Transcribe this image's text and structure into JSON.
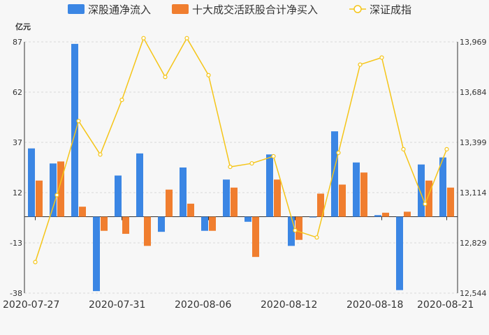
{
  "chart_data": {
    "type": "bar",
    "unit_label": "亿元",
    "legend": [
      {
        "name": "深股通净流入",
        "color": "#3b86e4",
        "kind": "bar"
      },
      {
        "name": "十大成交活跃股合计净买入",
        "color": "#f07e2f",
        "kind": "bar"
      },
      {
        "name": "深证成指",
        "color": "#f5c518",
        "kind": "line"
      }
    ],
    "x_tick_labels": [
      {
        "label": "2020-07-27",
        "index": 0
      },
      {
        "label": "2020-07-31",
        "index": 4
      },
      {
        "label": "2020-08-06",
        "index": 8
      },
      {
        "label": "2020-08-12",
        "index": 12
      },
      {
        "label": "2020-08-18",
        "index": 16
      },
      {
        "label": "2020-08-21",
        "index": 19
      }
    ],
    "y_left": {
      "min": -38,
      "max": 87,
      "ticks": [
        87,
        62,
        37,
        12,
        -13,
        -38
      ]
    },
    "y_right": {
      "min": 12544,
      "max": 13969,
      "ticks": [
        "13,969",
        "13,684",
        "13,399",
        "13,114",
        "12,829",
        "12,544"
      ]
    },
    "series": [
      {
        "name": "深股通净流入",
        "color": "#3b86e4",
        "values": [
          34,
          26.5,
          86,
          -37,
          20.5,
          31.5,
          -7.5,
          24.5,
          -7,
          18.5,
          -2.5,
          31,
          -14.5,
          0,
          42.5,
          27,
          0.8,
          -36.5,
          26,
          29.5
        ]
      },
      {
        "name": "十大成交活跃股合计净买入",
        "color": "#f07e2f",
        "values": [
          18,
          27.5,
          5,
          -7,
          -8.5,
          -14.5,
          13.5,
          6.5,
          -7,
          14.5,
          -20,
          18.5,
          -11.5,
          11.5,
          16,
          22,
          2,
          2.5,
          18,
          14.5
        ]
      },
      {
        "name": "深证成指",
        "color": "#f5c518",
        "values": [
          12720,
          13100,
          13520,
          13330,
          13640,
          13990,
          13770,
          13990,
          13780,
          13260,
          13280,
          13320,
          12900,
          12860,
          13340,
          13840,
          13880,
          13360,
          13050,
          13360
        ]
      }
    ]
  }
}
